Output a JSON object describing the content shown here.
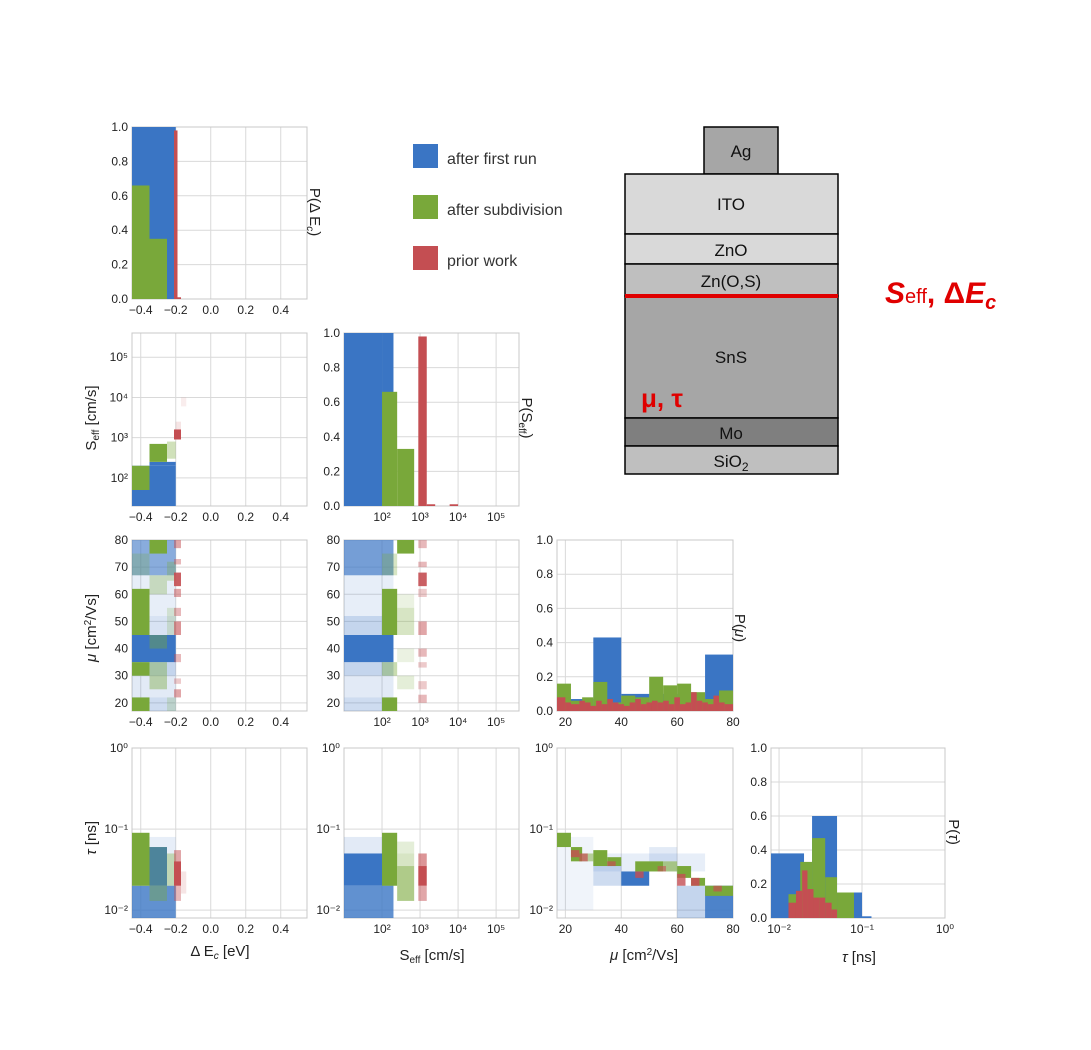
{
  "colors": {
    "first_run": "#3a75c4",
    "subdivision": "#79a83a",
    "prior": "#c44e52",
    "grid": "#d9d9d9",
    "frame": "#c8c8c8",
    "highlight": "#e00000"
  },
  "legend": {
    "entries": [
      {
        "label": "after first run",
        "color": "#3a75c4"
      },
      {
        "label": "after subdivision",
        "color": "#79a83a"
      },
      {
        "label": "prior work",
        "color": "#c44e52"
      }
    ]
  },
  "axis_labels": {
    "dEc": "Δ E_c [eV]",
    "seff": "S_eff [cm/s]",
    "mu": "μ [cm²/Vs]",
    "tau": "τ [ns]",
    "p_dEc": "P(Δ E_c)",
    "p_seff": "P(S_eff)",
    "p_mu": "P(μ)",
    "p_tau": "P(τ)"
  },
  "chart_data": [
    {
      "type": "bar",
      "id": "hist_dEc",
      "xlabel": "",
      "ylabel": "P(Δ E_c)",
      "xlim": [
        -0.45,
        0.55
      ],
      "ylim": [
        0,
        1
      ],
      "xticks": [
        "−0.4",
        "−0.2",
        "0.0",
        "0.2",
        "0.4"
      ],
      "yticks": [
        "0.0",
        "0.2",
        "0.4",
        "0.6",
        "0.8",
        "1.0"
      ],
      "series": [
        {
          "name": "after first run",
          "bins": [
            [
              -0.45,
              -0.25,
              1.0
            ],
            [
              -0.25,
              -0.2,
              1.0
            ]
          ]
        },
        {
          "name": "after subdivision",
          "bins": [
            [
              -0.45,
              -0.35,
              0.66
            ],
            [
              -0.35,
              -0.25,
              0.35
            ]
          ]
        },
        {
          "name": "prior work",
          "bins": [
            [
              -0.21,
              -0.19,
              0.98
            ],
            [
              -0.19,
              -0.17,
              0.01
            ]
          ]
        }
      ]
    },
    {
      "type": "heatmap",
      "id": "seff_vs_dEc",
      "xlabel": "",
      "ylabel": "S_eff [cm/s]",
      "xlim": [
        -0.45,
        0.55
      ],
      "ylog": true,
      "ylim": [
        20,
        400000
      ],
      "xticks": [
        "−0.4",
        "−0.2",
        "0.0",
        "0.2",
        "0.4"
      ],
      "yticks": [
        "10²",
        "10³",
        "10⁴",
        "10⁵"
      ],
      "cells": [
        {
          "series": "after first run",
          "x0": -0.45,
          "x1": -0.2,
          "y0": 20,
          "y1": 200,
          "a": 1
        },
        {
          "series": "after subdivision",
          "x0": -0.45,
          "x1": -0.35,
          "y0": 50,
          "y1": 200,
          "a": 1
        },
        {
          "series": "after first run",
          "x0": -0.35,
          "x1": -0.2,
          "y0": 200,
          "y1": 250,
          "a": 1
        },
        {
          "series": "after subdivision",
          "x0": -0.35,
          "x1": -0.25,
          "y0": 250,
          "y1": 700,
          "a": 1
        },
        {
          "series": "after subdivision",
          "x0": -0.25,
          "x1": -0.2,
          "y0": 300,
          "y1": 800,
          "a": 0.35
        },
        {
          "series": "prior work",
          "x0": -0.21,
          "x1": -0.17,
          "y0": 900,
          "y1": 1600,
          "a": 1
        },
        {
          "series": "prior work",
          "x0": -0.2,
          "x1": -0.17,
          "y0": 1600,
          "y1": 2500,
          "a": 0.15
        },
        {
          "series": "prior work",
          "x0": -0.17,
          "x1": -0.14,
          "y0": 6000,
          "y1": 10000,
          "a": 0.1
        }
      ]
    },
    {
      "type": "bar",
      "id": "hist_seff",
      "xlabel": "",
      "ylabel": "P(S_eff)",
      "xlog": true,
      "xlim": [
        10,
        400000
      ],
      "ylim": [
        0,
        1
      ],
      "xticks": [
        "10²",
        "10³",
        "10⁴",
        "10⁵"
      ],
      "yticks": [
        "0.0",
        "0.2",
        "0.4",
        "0.6",
        "0.8",
        "1.0"
      ],
      "series": [
        {
          "name": "after first run",
          "bins": [
            [
              10,
              100,
              1.0
            ],
            [
              100,
              200,
              1.0
            ]
          ]
        },
        {
          "name": "after subdivision",
          "bins": [
            [
              100,
              250,
              0.66
            ],
            [
              250,
              700,
              0.33
            ]
          ]
        },
        {
          "name": "prior work",
          "bins": [
            [
              900,
              1500,
              0.98
            ],
            [
              1500,
              2500,
              0.01
            ],
            [
              6000,
              10000,
              0.01
            ]
          ]
        }
      ]
    },
    {
      "type": "heatmap",
      "id": "mu_vs_dEc",
      "xlabel": "",
      "ylabel": "μ [cm²/Vs]",
      "xlim": [
        -0.45,
        0.55
      ],
      "ylim": [
        17,
        80
      ],
      "xticks": [
        "−0.4",
        "−0.2",
        "0.0",
        "0.2",
        "0.4"
      ],
      "yticks": [
        "20",
        "30",
        "40",
        "50",
        "60",
        "70",
        "80"
      ]
    },
    {
      "type": "heatmap",
      "id": "mu_vs_seff",
      "xlabel": "",
      "ylabel": "",
      "xlog": true,
      "xlim": [
        10,
        400000
      ],
      "ylim": [
        17,
        80
      ],
      "xticks": [
        "10²",
        "10³",
        "10⁴",
        "10⁵"
      ],
      "yticks": [
        "20",
        "30",
        "40",
        "50",
        "60",
        "70",
        "80"
      ]
    },
    {
      "type": "bar",
      "id": "hist_mu",
      "xlabel": "",
      "ylabel": "P(μ)",
      "xlim": [
        17,
        80
      ],
      "ylim": [
        0,
        1
      ],
      "xticks": [
        "20",
        "40",
        "60",
        "80"
      ],
      "yticks": [
        "0.0",
        "0.2",
        "0.4",
        "0.6",
        "0.8",
        "1.0"
      ],
      "series": [
        {
          "name": "after first run",
          "bins": [
            [
              17,
              22,
              0.07
            ],
            [
              22,
              30,
              0.07
            ],
            [
              30,
              40,
              0.43
            ],
            [
              40,
              50,
              0.1
            ],
            [
              50,
              60,
              0.1
            ],
            [
              60,
              70,
              0.1
            ],
            [
              70,
              80,
              0.33
            ]
          ]
        },
        {
          "name": "after subdivision",
          "bins": [
            [
              17,
              22,
              0.16
            ],
            [
              22,
              26,
              0.06
            ],
            [
              26,
              30,
              0.08
            ],
            [
              30,
              35,
              0.17
            ],
            [
              35,
              40,
              0.05
            ],
            [
              40,
              45,
              0.09
            ],
            [
              45,
              50,
              0.08
            ],
            [
              50,
              55,
              0.2
            ],
            [
              55,
              60,
              0.15
            ],
            [
              60,
              65,
              0.16
            ],
            [
              65,
              70,
              0.11
            ],
            [
              70,
              75,
              0.07
            ],
            [
              75,
              80,
              0.12
            ]
          ]
        },
        {
          "name": "prior work",
          "bins": [
            [
              17,
              20,
              0.08
            ],
            [
              20,
              22,
              0.05
            ],
            [
              22,
              25,
              0.04
            ],
            [
              25,
              27,
              0.06
            ],
            [
              27,
              29,
              0.05
            ],
            [
              29,
              31,
              0.03
            ],
            [
              31,
              33,
              0.06
            ],
            [
              33,
              35,
              0.04
            ],
            [
              35,
              37,
              0.07
            ],
            [
              37,
              39,
              0.05
            ],
            [
              39,
              41,
              0.04
            ],
            [
              41,
              43,
              0.03
            ],
            [
              43,
              45,
              0.05
            ],
            [
              45,
              47,
              0.07
            ],
            [
              47,
              49,
              0.04
            ],
            [
              49,
              51,
              0.05
            ],
            [
              51,
              53,
              0.06
            ],
            [
              53,
              55,
              0.05
            ],
            [
              55,
              57,
              0.06
            ],
            [
              57,
              59,
              0.04
            ],
            [
              59,
              61,
              0.08
            ],
            [
              61,
              63,
              0.04
            ],
            [
              63,
              65,
              0.05
            ],
            [
              65,
              67,
              0.11
            ],
            [
              67,
              69,
              0.06
            ],
            [
              69,
              71,
              0.05
            ],
            [
              71,
              73,
              0.04
            ],
            [
              73,
              75,
              0.09
            ],
            [
              75,
              77,
              0.05
            ],
            [
              77,
              80,
              0.04
            ]
          ]
        }
      ]
    },
    {
      "type": "heatmap",
      "id": "tau_vs_dEc",
      "xlabel": "Δ E_c [eV]",
      "ylabel": "τ [ns]",
      "xlim": [
        -0.45,
        0.55
      ],
      "ylog": true,
      "ylim": [
        0.008,
        1
      ],
      "xticks": [
        "−0.4",
        "−0.2",
        "0.0",
        "0.2",
        "0.4"
      ],
      "yticks": [
        "10⁻²",
        "10⁻¹",
        "10⁰"
      ]
    },
    {
      "type": "heatmap",
      "id": "tau_vs_seff",
      "xlabel": "S_eff [cm/s]",
      "ylabel": "",
      "xlog": true,
      "xlim": [
        10,
        400000
      ],
      "ylog": true,
      "ylim": [
        0.008,
        1
      ],
      "xticks": [
        "10²",
        "10³",
        "10⁴",
        "10⁵"
      ],
      "yticks": [
        "10⁻²",
        "10⁻¹",
        "10⁰"
      ]
    },
    {
      "type": "heatmap",
      "id": "tau_vs_mu",
      "xlabel": "μ [cm²/Vs]",
      "ylabel": "",
      "xlim": [
        17,
        80
      ],
      "ylog": true,
      "ylim": [
        0.008,
        1
      ],
      "xticks": [
        "20",
        "40",
        "60",
        "80"
      ],
      "yticks": [
        "10⁻²",
        "10⁻¹",
        "10⁰"
      ]
    },
    {
      "type": "bar",
      "id": "hist_tau",
      "xlabel": "τ [ns]",
      "ylabel": "P(τ)",
      "xlog": true,
      "xlim": [
        0.008,
        1
      ],
      "ylim": [
        0,
        1
      ],
      "xticks": [
        "10⁻²",
        "10⁻¹",
        "10⁰"
      ],
      "yticks": [
        "0.0",
        "0.2",
        "0.4",
        "0.6",
        "0.8",
        "1.0"
      ],
      "series": [
        {
          "name": "after first run",
          "bins": [
            [
              0.008,
              0.02,
              0.38
            ],
            [
              0.02,
              0.025,
              0.28
            ],
            [
              0.025,
              0.05,
              0.6
            ],
            [
              0.05,
              0.1,
              0.15
            ],
            [
              0.1,
              0.13,
              0.01
            ]
          ]
        },
        {
          "name": "after subdivision",
          "bins": [
            [
              0.013,
              0.018,
              0.14
            ],
            [
              0.018,
              0.025,
              0.33
            ],
            [
              0.025,
              0.036,
              0.47
            ],
            [
              0.036,
              0.05,
              0.24
            ],
            [
              0.05,
              0.08,
              0.15
            ]
          ]
        },
        {
          "name": "prior work",
          "bins": [
            [
              0.013,
              0.016,
              0.09
            ],
            [
              0.016,
              0.019,
              0.16
            ],
            [
              0.019,
              0.022,
              0.28
            ],
            [
              0.022,
              0.026,
              0.17
            ],
            [
              0.026,
              0.031,
              0.12
            ],
            [
              0.031,
              0.036,
              0.12
            ],
            [
              0.036,
              0.043,
              0.09
            ],
            [
              0.043,
              0.05,
              0.05
            ]
          ]
        }
      ]
    }
  ],
  "device_stack": {
    "layers": [
      {
        "label": "Ag",
        "shade": "#a6a6a6"
      },
      {
        "label": "ITO",
        "shade": "#d9d9d9"
      },
      {
        "label": "ZnO",
        "shade": "#d9d9d9"
      },
      {
        "label": "Zn(O,S)",
        "shade": "#bfbfbf"
      },
      {
        "label": "SnS",
        "shade": "#a6a6a6"
      },
      {
        "label": "Mo",
        "shade": "#7f7f7f"
      },
      {
        "label": "SiO2",
        "shade": "#bfbfbf"
      }
    ],
    "interface_params": "S_eff, ΔE_c",
    "bulk_params": "μ, τ"
  }
}
